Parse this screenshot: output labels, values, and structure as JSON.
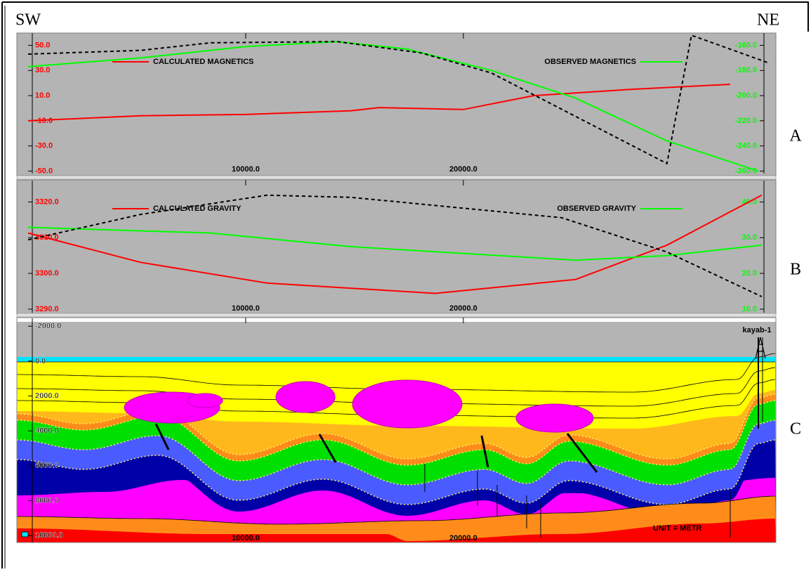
{
  "header": {
    "left": "SW",
    "right": "NE"
  },
  "chart_data": [
    {
      "type": "line",
      "label": "A",
      "xlim": [
        0,
        34200
      ],
      "xticks": [
        {
          "value": 10000,
          "label": "10000.0"
        },
        {
          "value": 20000,
          "label": "20000.0"
        }
      ],
      "ylim": [
        -52,
        57
      ],
      "yticks": [
        {
          "value": 50,
          "label": "50.0"
        },
        {
          "value": 30,
          "label": "30.0"
        },
        {
          "value": 10,
          "label": "10.0"
        },
        {
          "value": -10,
          "label": "-10.0"
        },
        {
          "value": -30,
          "label": "-30.0"
        },
        {
          "value": -50,
          "label": "-50.0"
        }
      ],
      "y2lim": [
        -262,
        -153
      ],
      "y2ticks": [
        {
          "value": -160,
          "label": "-160.0"
        },
        {
          "value": -180,
          "label": "-180.0"
        },
        {
          "value": -200,
          "label": "-200.0"
        },
        {
          "value": -220,
          "label": "-220.0"
        },
        {
          "value": -240,
          "label": "-240.0"
        },
        {
          "value": -260,
          "label": "-260.0"
        }
      ],
      "grid": false,
      "series": [
        {
          "name": "CALCULATED MAGNETICS",
          "color": "#ff0000",
          "x": [
            0,
            5161,
            10000,
            14839,
            16129,
            20000,
            23226,
            27742,
            32258
          ],
          "values": [
            -10,
            -6,
            -5,
            -2,
            0.5,
            -1,
            10,
            15,
            19
          ]
        },
        {
          "name": "OBSERVED MAGNETICS",
          "color": "#00ff00",
          "axis": "y2",
          "x": [
            0,
            5161,
            10000,
            14194,
            17419,
            21290,
            25161,
            29355,
            33548
          ],
          "values": [
            -177,
            -170,
            -161,
            -157,
            -163,
            -180,
            -202,
            -236,
            -260
          ]
        },
        {
          "color": "#000000",
          "dashed": true,
          "x": [
            0,
            5161,
            8387,
            14194,
            18065,
            21290,
            29355,
            30484,
            34032
          ],
          "values": [
            43,
            46,
            52,
            53,
            44,
            28,
            -44,
            58,
            36
          ]
        }
      ]
    },
    {
      "type": "line",
      "label": "B",
      "xlim": [
        0,
        34200
      ],
      "xticks": [
        {
          "value": 10000,
          "label": "10000.0"
        },
        {
          "value": 20000,
          "label": "20000.0"
        }
      ],
      "ylim": [
        3289,
        3325
      ],
      "yticks": [
        {
          "value": 3320,
          "label": "3320.0"
        },
        {
          "value": 3310,
          "label": "3310.0"
        },
        {
          "value": 3300,
          "label": "3300.0"
        },
        {
          "value": 3290,
          "label": "3290.0"
        }
      ],
      "y2lim": [
        9,
        45
      ],
      "y2ticks": [
        {
          "value": 40,
          "label": "40.0"
        },
        {
          "value": 30,
          "label": "30.0"
        },
        {
          "value": 20,
          "label": "20.0"
        },
        {
          "value": 10,
          "label": "10.0"
        }
      ],
      "grid": false,
      "series": [
        {
          "name": "CALCULATED GRAVITY",
          "color": "#ff0000",
          "x": [
            0,
            5161,
            10968,
            18710,
            25161,
            29355,
            33710
          ],
          "values": [
            3311.3,
            3303.1,
            3297.3,
            3294.4,
            3298.3,
            3307.9,
            3321.9
          ]
        },
        {
          "name": "OBSERVED GRAVITY",
          "color": "#00ff00",
          "axis": "y2",
          "x": [
            0,
            8387,
            14839,
            25161,
            29355,
            33710
          ],
          "values": [
            32.9,
            31.3,
            27.5,
            23.7,
            25,
            27.9
          ]
        },
        {
          "color": "#000000",
          "dashed": true,
          "x": [
            0,
            5161,
            10968,
            14839,
            24516,
            29355,
            33710
          ],
          "values": [
            3309.4,
            3316.5,
            3321.9,
            3321.3,
            3315.6,
            3306,
            3293.5
          ]
        }
      ]
    },
    {
      "type": "section",
      "label": "C",
      "xlim": [
        0,
        34200
      ],
      "xticks": [
        {
          "value": 10000,
          "label": "10000.0"
        },
        {
          "value": 20000,
          "label": "20000.0"
        }
      ],
      "ylim": [
        10400,
        -2250
      ],
      "yticks": [
        {
          "value": -2000,
          "label": "-2000.0"
        },
        {
          "value": 0,
          "label": "0.0"
        },
        {
          "value": 2000,
          "label": "2000.0"
        },
        {
          "value": 4000,
          "label": "4000.0"
        },
        {
          "value": 6000,
          "label": "6000.0"
        },
        {
          "value": 8000,
          "label": "8000.0"
        },
        {
          "value": 10000,
          "label": "10000.0"
        }
      ],
      "grid": false,
      "annotations": [
        {
          "text": "kayab-1"
        },
        {
          "text": "UNIT = METR"
        }
      ]
    }
  ]
}
